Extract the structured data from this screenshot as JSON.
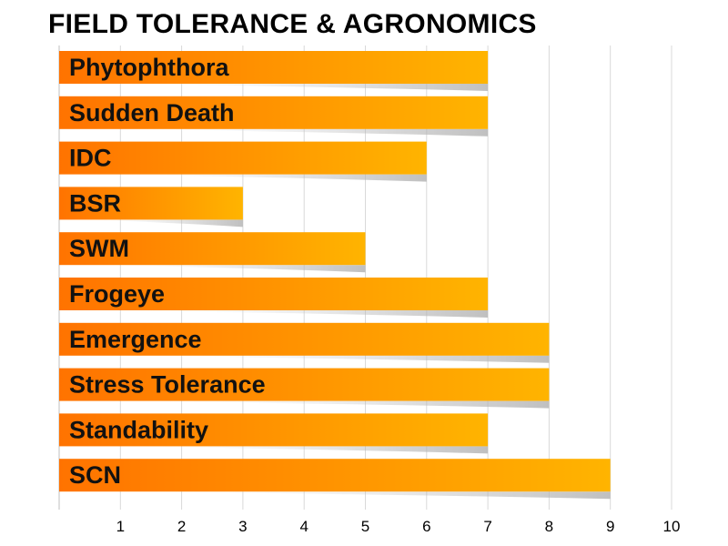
{
  "chart_data": {
    "type": "bar",
    "orientation": "horizontal",
    "title": "FIELD TOLERANCE & AGRONOMICS",
    "categories": [
      "Phytophthora",
      "Sudden Death",
      "IDC",
      "BSR",
      "SWM",
      "Frogeye",
      "Emergence",
      "Stress Tolerance",
      "Standability",
      "SCN"
    ],
    "values": [
      7,
      7,
      6,
      3,
      5,
      7,
      8,
      8,
      7,
      9
    ],
    "xlim": [
      0,
      10
    ],
    "xticks": [
      "1",
      "2",
      "3",
      "4",
      "5",
      "6",
      "7",
      "8",
      "9",
      "10"
    ],
    "grid": true,
    "legend": "none",
    "colors": {
      "bar_start": "#ff7300",
      "bar_end": "#ffb400",
      "grid": "#d9d9d9",
      "axis": "#bfbfbf",
      "shadow": "#b5b5b5"
    }
  }
}
